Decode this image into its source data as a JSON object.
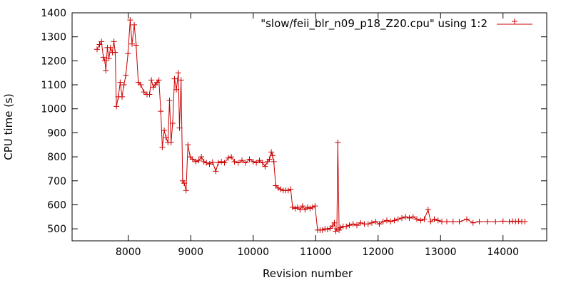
{
  "chart_data": {
    "type": "line",
    "xlabel": "Revision number",
    "ylabel": "CPU time (s)",
    "xlim": [
      7100,
      14700
    ],
    "ylim": [
      450,
      1400
    ],
    "xticks": [
      8000,
      9000,
      10000,
      11000,
      12000,
      13000,
      14000
    ],
    "yticks": [
      500,
      600,
      700,
      800,
      900,
      1000,
      1100,
      1200,
      1300,
      1400
    ],
    "grid": false,
    "legend_position": "top-right",
    "colors": {
      "series": "#cc0000",
      "frame": "#000000"
    },
    "series": [
      {
        "name": "\"slow/feii_blr_n09_p18_Z20.cpu\" using 1:2",
        "marker": "plus",
        "points": [
          [
            7500,
            1248
          ],
          [
            7540,
            1268
          ],
          [
            7570,
            1280
          ],
          [
            7600,
            1215
          ],
          [
            7625,
            1200
          ],
          [
            7640,
            1160
          ],
          [
            7665,
            1255
          ],
          [
            7690,
            1210
          ],
          [
            7715,
            1255
          ],
          [
            7745,
            1235
          ],
          [
            7770,
            1280
          ],
          [
            7790,
            1235
          ],
          [
            7810,
            1010
          ],
          [
            7840,
            1050
          ],
          [
            7870,
            1110
          ],
          [
            7900,
            1050
          ],
          [
            7930,
            1100
          ],
          [
            7960,
            1140
          ],
          [
            7995,
            1230
          ],
          [
            8030,
            1370
          ],
          [
            8060,
            1270
          ],
          [
            8095,
            1350
          ],
          [
            8125,
            1265
          ],
          [
            8160,
            1110
          ],
          [
            8200,
            1100
          ],
          [
            8250,
            1070
          ],
          [
            8300,
            1060
          ],
          [
            8340,
            1060
          ],
          [
            8370,
            1120
          ],
          [
            8400,
            1090
          ],
          [
            8430,
            1100
          ],
          [
            8460,
            1110
          ],
          [
            8490,
            1120
          ],
          [
            8520,
            990
          ],
          [
            8545,
            840
          ],
          [
            8575,
            910
          ],
          [
            8605,
            880
          ],
          [
            8635,
            860
          ],
          [
            8660,
            1035
          ],
          [
            8685,
            860
          ],
          [
            8710,
            940
          ],
          [
            8740,
            1125
          ],
          [
            8770,
            1080
          ],
          [
            8800,
            1150
          ],
          [
            8820,
            920
          ],
          [
            8845,
            1120
          ],
          [
            8870,
            700
          ],
          [
            8895,
            690
          ],
          [
            8925,
            660
          ],
          [
            8955,
            850
          ],
          [
            8990,
            800
          ],
          [
            9030,
            790
          ],
          [
            9080,
            780
          ],
          [
            9130,
            785
          ],
          [
            9170,
            800
          ],
          [
            9210,
            780
          ],
          [
            9250,
            775
          ],
          [
            9300,
            770
          ],
          [
            9350,
            778
          ],
          [
            9400,
            740
          ],
          [
            9440,
            775
          ],
          [
            9490,
            780
          ],
          [
            9540,
            775
          ],
          [
            9600,
            795
          ],
          [
            9650,
            800
          ],
          [
            9700,
            780
          ],
          [
            9760,
            775
          ],
          [
            9820,
            785
          ],
          [
            9880,
            775
          ],
          [
            9940,
            790
          ],
          [
            10000,
            780
          ],
          [
            10050,
            775
          ],
          [
            10100,
            785
          ],
          [
            10150,
            775
          ],
          [
            10190,
            760
          ],
          [
            10230,
            780
          ],
          [
            10260,
            790
          ],
          [
            10290,
            820
          ],
          [
            10310,
            805
          ],
          [
            10330,
            780
          ],
          [
            10360,
            680
          ],
          [
            10400,
            670
          ],
          [
            10440,
            665
          ],
          [
            10480,
            660
          ],
          [
            10520,
            660
          ],
          [
            10560,
            660
          ],
          [
            10600,
            665
          ],
          [
            10630,
            590
          ],
          [
            10670,
            585
          ],
          [
            10710,
            590
          ],
          [
            10750,
            580
          ],
          [
            10790,
            595
          ],
          [
            10830,
            580
          ],
          [
            10870,
            590
          ],
          [
            10910,
            585
          ],
          [
            10950,
            590
          ],
          [
            10990,
            595
          ],
          [
            11030,
            495
          ],
          [
            11070,
            495
          ],
          [
            11110,
            495
          ],
          [
            11150,
            500
          ],
          [
            11190,
            498
          ],
          [
            11230,
            502
          ],
          [
            11270,
            512
          ],
          [
            11300,
            525
          ],
          [
            11320,
            490
          ],
          [
            11340,
            500
          ],
          [
            11355,
            860
          ],
          [
            11375,
            495
          ],
          [
            11400,
            505
          ],
          [
            11440,
            510
          ],
          [
            11490,
            510
          ],
          [
            11540,
            515
          ],
          [
            11600,
            520
          ],
          [
            11660,
            515
          ],
          [
            11720,
            525
          ],
          [
            11780,
            520
          ],
          [
            11840,
            520
          ],
          [
            11900,
            525
          ],
          [
            11960,
            530
          ],
          [
            12020,
            520
          ],
          [
            12080,
            530
          ],
          [
            12140,
            535
          ],
          [
            12200,
            530
          ],
          [
            12260,
            535
          ],
          [
            12320,
            540
          ],
          [
            12380,
            545
          ],
          [
            12440,
            550
          ],
          [
            12500,
            545
          ],
          [
            12560,
            550
          ],
          [
            12620,
            540
          ],
          [
            12680,
            535
          ],
          [
            12740,
            540
          ],
          [
            12800,
            580
          ],
          [
            12840,
            530
          ],
          [
            12900,
            540
          ],
          [
            12960,
            535
          ],
          [
            13020,
            530
          ],
          [
            13100,
            530
          ],
          [
            13200,
            530
          ],
          [
            13300,
            530
          ],
          [
            13420,
            540
          ],
          [
            13520,
            525
          ],
          [
            13620,
            530
          ],
          [
            13750,
            530
          ],
          [
            13880,
            530
          ],
          [
            14000,
            532
          ],
          [
            14100,
            530
          ],
          [
            14150,
            532
          ],
          [
            14200,
            530
          ],
          [
            14250,
            532
          ],
          [
            14300,
            530
          ],
          [
            14350,
            530
          ]
        ]
      }
    ]
  }
}
